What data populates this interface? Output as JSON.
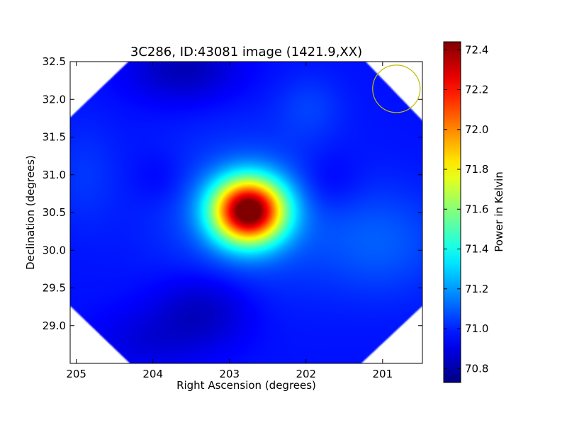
{
  "chart_data": {
    "type": "heatmap",
    "title": "3C286, ID:43081 image (1421.9,XX)",
    "xlabel": "Right Ascension (degrees)",
    "ylabel": "Declination (degrees)",
    "xlim": [
      205.08,
      200.48
    ],
    "ylim": [
      28.5,
      32.5
    ],
    "x_ticks": [
      205,
      204,
      203,
      202,
      201
    ],
    "x_tick_labels": [
      "205",
      "204",
      "203",
      "202",
      "201"
    ],
    "y_ticks": [
      29.0,
      29.5,
      30.0,
      30.5,
      31.0,
      31.5,
      32.0,
      32.5
    ],
    "y_tick_labels": [
      "29.0",
      "29.5",
      "30.0",
      "30.5",
      "31.0",
      "31.5",
      "32.0",
      "32.5"
    ],
    "colormap": "jet",
    "colorbar": {
      "label": "Power in Kelvin",
      "vmin": 70.73,
      "vmax": 72.44,
      "ticks": [
        70.8,
        71.0,
        71.2,
        71.4,
        71.6,
        71.8,
        72.0,
        72.2,
        72.4
      ],
      "tick_labels": [
        "70.8",
        "71.0",
        "71.2",
        "71.4",
        "71.6",
        "71.8",
        "72.0",
        "72.2",
        "72.4"
      ]
    },
    "background_level": 70.97,
    "components": [
      {
        "ra": 202.75,
        "dec": 30.52,
        "sigma_ra": 0.33,
        "sigma_dec": 0.3,
        "amp": 1.47
      },
      {
        "ra": 202.75,
        "dec": 30.52,
        "sigma_ra": 0.8,
        "sigma_dec": 0.7,
        "amp": 0.14
      },
      {
        "ra": 203.35,
        "dec": 29.2,
        "sigma_ra": 0.45,
        "sigma_dec": 0.35,
        "amp": -0.14
      },
      {
        "ra": 203.6,
        "dec": 32.4,
        "sigma_ra": 0.5,
        "sigma_dec": 0.3,
        "amp": -0.15
      },
      {
        "ra": 201.7,
        "dec": 30.9,
        "sigma_ra": 0.3,
        "sigma_dec": 0.3,
        "amp": -0.07
      },
      {
        "ra": 203.9,
        "dec": 30.95,
        "sigma_ra": 0.25,
        "sigma_dec": 0.25,
        "amp": -0.05
      },
      {
        "ra": 204.1,
        "dec": 28.8,
        "sigma_ra": 0.5,
        "sigma_dec": 0.3,
        "amp": -0.08
      },
      {
        "ra": 201.0,
        "dec": 30.1,
        "sigma_ra": 0.6,
        "sigma_dec": 0.5,
        "amp": 0.12
      },
      {
        "ra": 201.95,
        "dec": 31.9,
        "sigma_ra": 0.3,
        "sigma_dec": 0.3,
        "amp": 0.07
      },
      {
        "ra": 204.9,
        "dec": 31.0,
        "sigma_ra": 0.3,
        "sigma_dec": 0.5,
        "amp": 0.06
      }
    ],
    "beam_circle": {
      "ra": 200.82,
      "dec": 32.14,
      "radius_deg": 0.31,
      "color": "#bfbf00"
    },
    "footprint_octagon_ra_dec": [
      [
        205.08,
        31.76
      ],
      [
        204.32,
        32.5
      ],
      [
        201.22,
        32.5
      ],
      [
        200.48,
        31.72
      ],
      [
        200.48,
        29.26
      ],
      [
        201.28,
        28.5
      ],
      [
        204.3,
        28.5
      ],
      [
        205.08,
        29.26
      ]
    ]
  }
}
